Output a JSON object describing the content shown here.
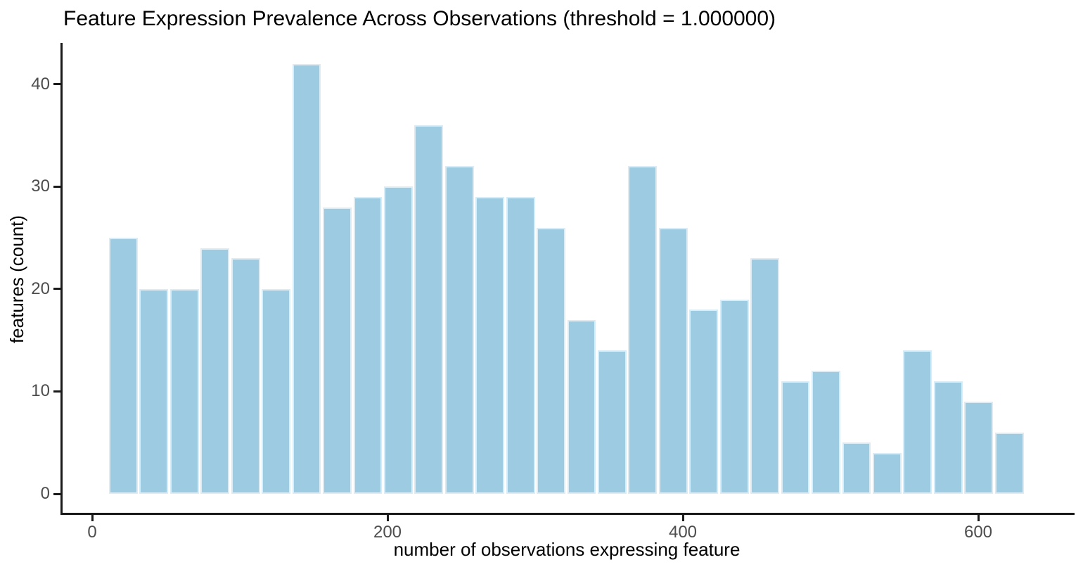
{
  "chart_data": {
    "type": "bar",
    "subtype": "histogram",
    "title": "Feature Expression Prevalence Across Observations (threshold = 1.000000)",
    "xlabel": "number of observations expressing feature",
    "ylabel": "features (count)",
    "values": [
      25,
      20,
      20,
      24,
      23,
      20,
      42,
      28,
      29,
      30,
      36,
      32,
      29,
      29,
      26,
      17,
      14,
      32,
      26,
      18,
      19,
      23,
      11,
      12,
      5,
      4,
      14,
      11,
      9,
      6
    ],
    "bin_count": 30,
    "bin_start": 11.4,
    "bin_width": 20.7,
    "x_ticks": [
      0,
      200,
      400,
      600
    ],
    "y_ticks": [
      0,
      10,
      20,
      30,
      40
    ],
    "xlim": [
      -21,
      664
    ],
    "ylim": [
      0,
      44
    ],
    "grid": false,
    "legend": false
  },
  "style": {
    "bar_fill": "#9DCBE1",
    "bar_edge": "#DAECF5",
    "axis_color": "#1A1A1A",
    "tick_label_color": "#4D4D4D",
    "text_color": "#000000",
    "background": "#FFFFFF"
  }
}
